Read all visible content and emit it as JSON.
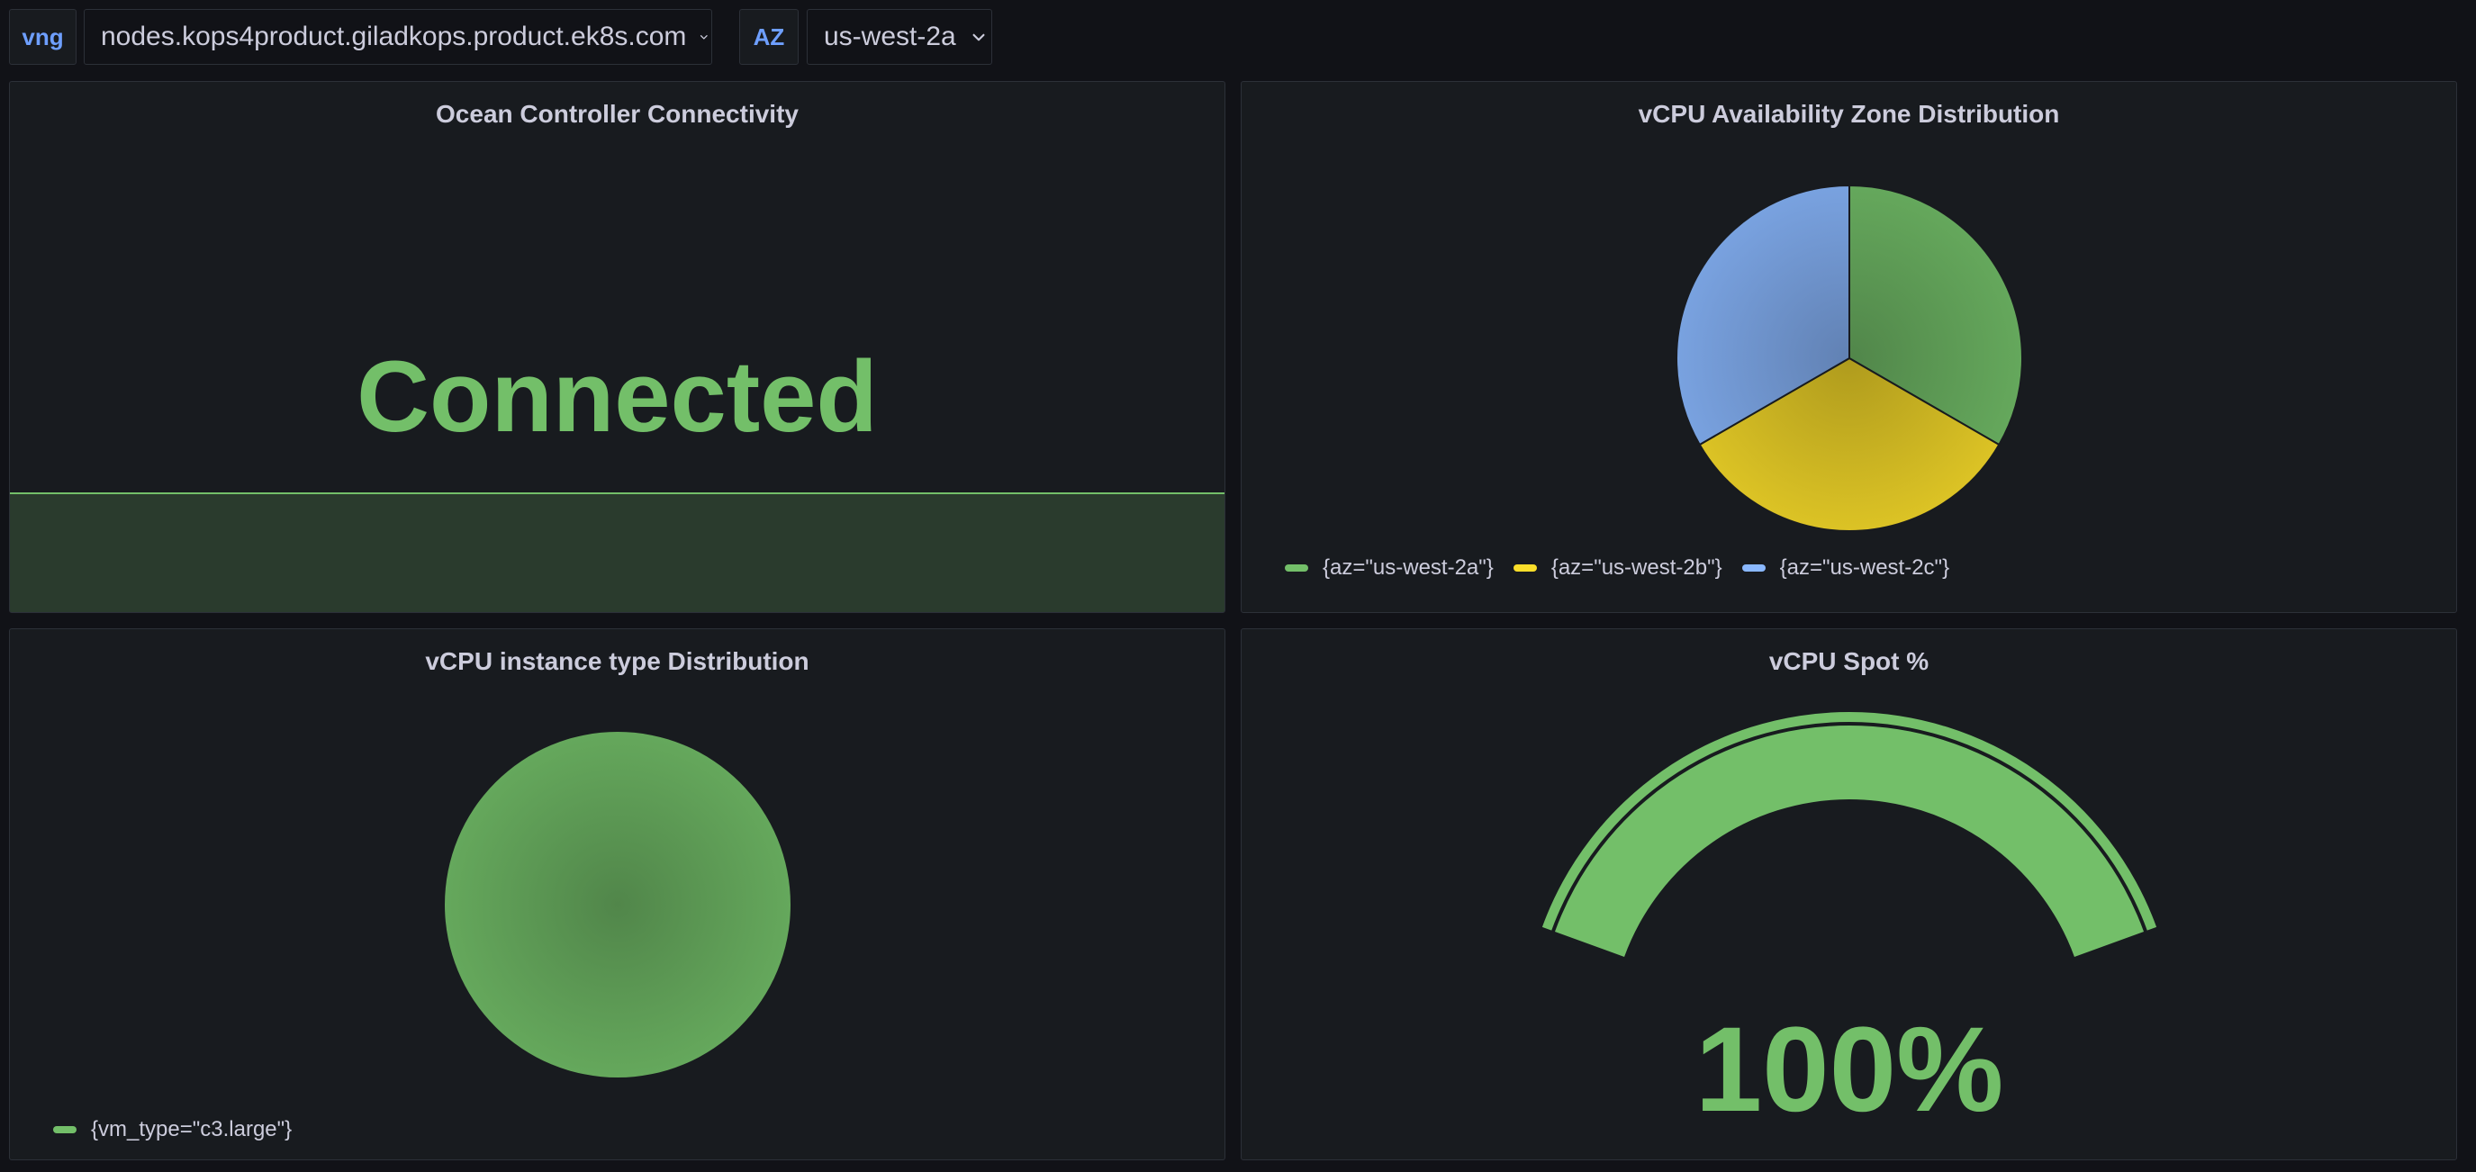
{
  "variables": {
    "vng": {
      "label": "vng",
      "value": "nodes.kops4product.giladkops.product.ek8s.com"
    },
    "az": {
      "label": "AZ",
      "value": "us-west-2a"
    }
  },
  "panels": {
    "connectivity": {
      "title": "Ocean Controller Connectivity",
      "value": "Connected",
      "color": "#73bf69"
    },
    "az_distribution": {
      "title": "vCPU Availability Zone Distribution"
    },
    "instance_type": {
      "title": "vCPU instance type Distribution"
    },
    "spot": {
      "title": "vCPU Spot %",
      "display_value": "100%"
    }
  },
  "chart_data": [
    {
      "type": "pie",
      "title": "vCPU Availability Zone Distribution",
      "legend_placement": "bottom-left",
      "series": [
        {
          "name": "{az=\"us-west-2a\"}",
          "value": 1,
          "color": "#73bf69"
        },
        {
          "name": "{az=\"us-west-2b\"}",
          "value": 1,
          "color": "#fade2a"
        },
        {
          "name": "{az=\"us-west-2c\"}",
          "value": 1,
          "color": "#8ab8ff"
        }
      ]
    },
    {
      "type": "pie",
      "title": "vCPU instance type Distribution",
      "legend_placement": "bottom-left",
      "series": [
        {
          "name": "{vm_type=\"c3.large\"}",
          "value": 1,
          "color": "#73bf69"
        }
      ]
    },
    {
      "type": "gauge",
      "title": "vCPU Spot %",
      "value": 100,
      "min": 0,
      "max": 100,
      "unit": "%",
      "color": "#73bf69"
    }
  ]
}
